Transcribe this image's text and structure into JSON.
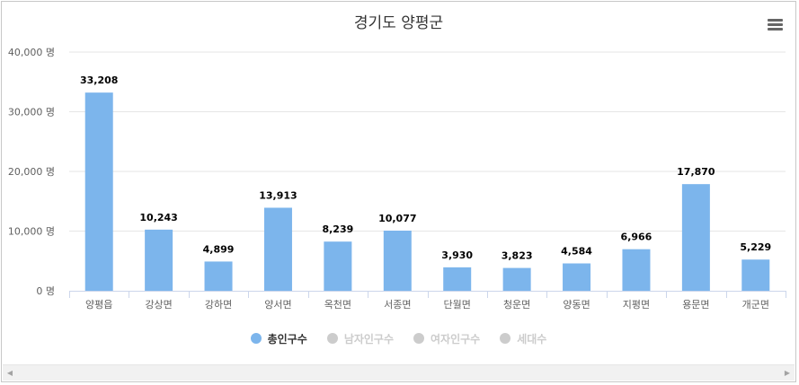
{
  "chart_data": {
    "type": "bar",
    "title": "경기도 양평군",
    "categories": [
      "양평읍",
      "강상면",
      "강하면",
      "양서면",
      "옥천면",
      "서종면",
      "단월면",
      "청운면",
      "양동면",
      "지평면",
      "용문면",
      "개군면"
    ],
    "series": [
      {
        "name": "총인구수",
        "values": [
          33208,
          10243,
          4899,
          13913,
          8239,
          10077,
          3930,
          3823,
          4584,
          6966,
          17870,
          5229
        ],
        "color": "#7cb5ec",
        "visible": true
      },
      {
        "name": "남자인구수",
        "visible": false
      },
      {
        "name": "여자인구수",
        "visible": false
      },
      {
        "name": "세대수",
        "visible": false
      }
    ],
    "data_labels": [
      "33,208",
      "10,243",
      "4,899",
      "13,913",
      "8,239",
      "10,077",
      "3,930",
      "3,823",
      "4,584",
      "6,966",
      "17,870",
      "5,229"
    ],
    "ylim": [
      0,
      40000
    ],
    "y_ticks": [
      0,
      10000,
      20000,
      30000,
      40000
    ],
    "y_tick_labels": [
      "0 명",
      "10,000 명",
      "20,000 명",
      "30,000 명",
      "40,000 명"
    ],
    "xlabel": "",
    "ylabel": "",
    "grid": true,
    "legend_position": "bottom-center"
  },
  "legend_colors": {
    "active": "#7cb5ec",
    "inactive": "#cccccc"
  },
  "icons": {
    "menu": "hamburger-menu-icon",
    "scroll_left": "chevron-left-icon",
    "scroll_right": "chevron-right-icon"
  },
  "scroll": {
    "left_arrow": "◀",
    "right_arrow": "▶"
  }
}
